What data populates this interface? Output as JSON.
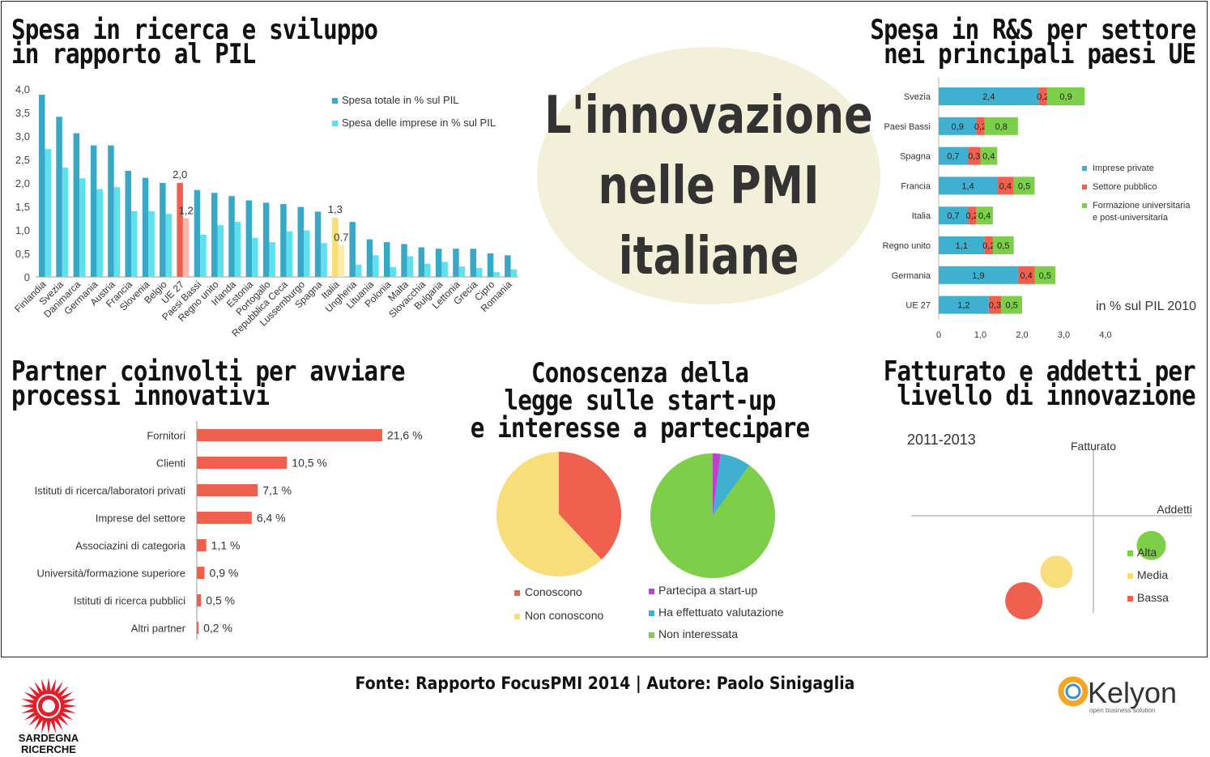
{
  "center_title": [
    "L'innovazione",
    "nelle PMI",
    "italiane"
  ],
  "source": "Fonte: Rapporto FocusPMI 2014 | Autore: Paolo Sinigaglia",
  "logos": {
    "left": [
      "SARDEGNA",
      "RICERCHE"
    ],
    "right": "Kelyon",
    "right_tagline": "open business solution"
  },
  "colors": {
    "teal_dark": "#37a9c6",
    "teal_light": "#5ee1ec",
    "red": "#f0604f",
    "pink": "#f8b8b0",
    "yellow": "#f8dd7b",
    "yellow_light": "#fbeda7",
    "green": "#7dce48",
    "blue": "#3fb0cf",
    "purple": "#c040d0"
  },
  "chart_data": [
    {
      "type": "bar",
      "title": [
        "Spesa in ricerca e sviluppo",
        "in rapporto al PIL"
      ],
      "categories": [
        "Finlandia",
        "Svezia",
        "Danimarca",
        "Germania",
        "Austria",
        "Francia",
        "Slovenia",
        "Belgio",
        "UE 27",
        "Paesi Bassi",
        "Regno unito",
        "Irlanda",
        "Estonia",
        "Portogallo",
        "Repubblica Ceca",
        "Lussemburgo",
        "Spagna",
        "Italia",
        "Ungheria",
        "Lituania",
        "Polonia",
        "Malta",
        "Slovacchia",
        "Bulgaria",
        "Lettonia",
        "Grecia",
        "Cipro",
        "Romania"
      ],
      "series": [
        {
          "name": "Spesa totale in % sul PIL",
          "values": [
            3.88,
            3.41,
            3.06,
            2.8,
            2.8,
            2.26,
            2.11,
            2.0,
            2.0,
            1.85,
            1.79,
            1.72,
            1.63,
            1.58,
            1.55,
            1.49,
            1.39,
            1.26,
            1.17,
            0.8,
            0.74,
            0.7,
            0.63,
            0.6,
            0.6,
            0.6,
            0.5,
            0.46
          ]
        },
        {
          "name": "Spesa delle imprese in % sul PIL",
          "values": [
            2.72,
            2.33,
            2.1,
            1.87,
            1.91,
            1.4,
            1.4,
            1.34,
            1.25,
            0.9,
            1.1,
            1.17,
            0.83,
            0.74,
            0.97,
            0.99,
            0.72,
            0.68,
            0.26,
            0.46,
            0.21,
            0.44,
            0.28,
            0.32,
            0.22,
            0.19,
            0.1,
            0.16
          ]
        }
      ],
      "ylim": [
        0,
        4.0
      ],
      "yticks": [
        "0",
        "0,5",
        "1,0",
        "1,5",
        "2,0",
        "2,5",
        "3,0",
        "3,5",
        "4,0"
      ],
      "annotations": [
        {
          "category": "UE 27",
          "labels": [
            "2,0",
            "1,2"
          ]
        },
        {
          "category": "Italia",
          "labels": [
            "1,3",
            "0.7"
          ]
        }
      ]
    },
    {
      "type": "bar",
      "orientation": "horizontal-stacked",
      "title": [
        "Spesa in R&S per settore",
        "nei principali paesi UE"
      ],
      "categories": [
        "Svezia",
        "Paesi Bassi",
        "Spagna",
        "Francia",
        "Italia",
        "Regno unito",
        "Germania",
        "UE 27"
      ],
      "series": [
        {
          "name": "Imprese private",
          "values": [
            2.4,
            0.9,
            0.7,
            1.4,
            0.7,
            1.1,
            1.9,
            1.2
          ],
          "labels": [
            "2,4",
            "0,9",
            "0,7",
            "1,4",
            "0,7",
            "1,1",
            "1,9",
            "1,2"
          ]
        },
        {
          "name": "Settore pubblico",
          "values": [
            0.2,
            0.2,
            0.3,
            0.4,
            0.2,
            0.2,
            0.4,
            0.3
          ],
          "labels": [
            "0,2",
            "0,2",
            "0,3",
            "0,4",
            "0,2",
            "0,2",
            "0,4",
            "0,3"
          ]
        },
        {
          "name": "Formazione universitaria e post-universitaria",
          "values": [
            0.9,
            0.8,
            0.4,
            0.5,
            0.4,
            0.5,
            0.5,
            0.5
          ],
          "labels": [
            "0,9",
            "0,8",
            "0,4",
            "0,5",
            "0,4",
            "0,5",
            "0,5",
            "0,5"
          ]
        }
      ],
      "legend_lines": [
        [
          "Imprese private"
        ],
        [
          "Settore pubblico"
        ],
        [
          "Formazione universitaria",
          "e post-universitaria"
        ]
      ],
      "note": "in % sul PIL 2010",
      "xlim": [
        0,
        4.0
      ],
      "xticks": [
        "0",
        "1,0",
        "2,0",
        "3,0",
        "4,0"
      ]
    },
    {
      "type": "bar",
      "orientation": "horizontal",
      "title": [
        "Partner coinvolti per avviare",
        "processi innovativi"
      ],
      "categories": [
        "Fornitori",
        "Clienti",
        "Istituti di ricerca/laboratori privati",
        "Imprese del settore",
        "Associazini di categoria",
        "Università/formazione superiore",
        "Istituti di ricerca pubblici",
        "Altri partner"
      ],
      "values": [
        21.6,
        10.5,
        7.1,
        6.4,
        1.1,
        0.9,
        0.5,
        0.2
      ],
      "labels": [
        "21,6 %",
        "10,5 %",
        "7,1 %",
        "6,4 %",
        "1,1 %",
        "0,9 %",
        "0,5 %",
        "0,2 %"
      ]
    },
    {
      "type": "pie",
      "title": [
        "Conoscenza della",
        "legge sulle start-up",
        "e interesse a partecipare"
      ],
      "categories": [
        "Conoscono",
        "Non conoscono"
      ],
      "values": [
        38,
        62
      ]
    },
    {
      "type": "pie",
      "categories": [
        "Partecipa a start-up",
        "Ha effettuato valutazione",
        "Non interessata"
      ],
      "values": [
        2,
        8,
        90
      ]
    },
    {
      "type": "scatter",
      "title": [
        "Fatturato e addetti per",
        "livello di innovazione"
      ],
      "subtitle": "2011-2013",
      "xlabel": "Addetti",
      "ylabel": "Fatturato",
      "series": [
        {
          "name": "Alta",
          "x": 0.55,
          "y": -0.35
        },
        {
          "name": "Media",
          "x": -0.35,
          "y": -0.66
        },
        {
          "name": "Bassa",
          "x": -0.66,
          "y": -1.0
        }
      ]
    }
  ]
}
